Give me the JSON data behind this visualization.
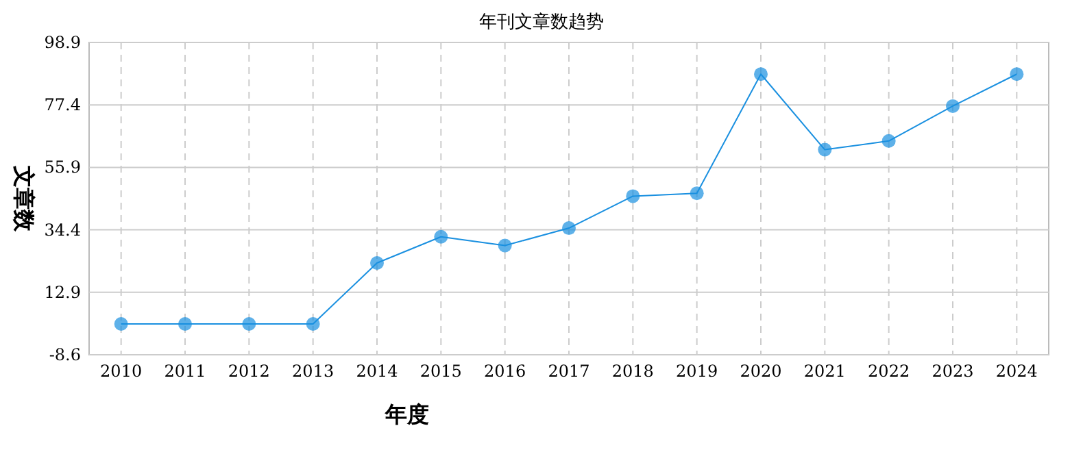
{
  "chart_data": {
    "type": "line",
    "title": "年刊文章数趋势",
    "xlabel": "年度",
    "ylabel": "文章数",
    "categories": [
      "2010",
      "2011",
      "2012",
      "2013",
      "2014",
      "2015",
      "2016",
      "2017",
      "2018",
      "2019",
      "2020",
      "2021",
      "2022",
      "2023",
      "2024"
    ],
    "series": [
      {
        "color": "#1a90e0",
        "values": [
          2,
          2,
          2,
          2,
          23,
          32,
          29,
          35,
          46,
          47,
          88,
          62,
          65,
          77,
          88
        ]
      }
    ],
    "ylim": [
      -8.6,
      98.9
    ],
    "yticks": [
      -8.6,
      12.9,
      34.4,
      55.9,
      77.4,
      98.9
    ],
    "grid": true,
    "marker": "circle",
    "line_style": "solid"
  }
}
